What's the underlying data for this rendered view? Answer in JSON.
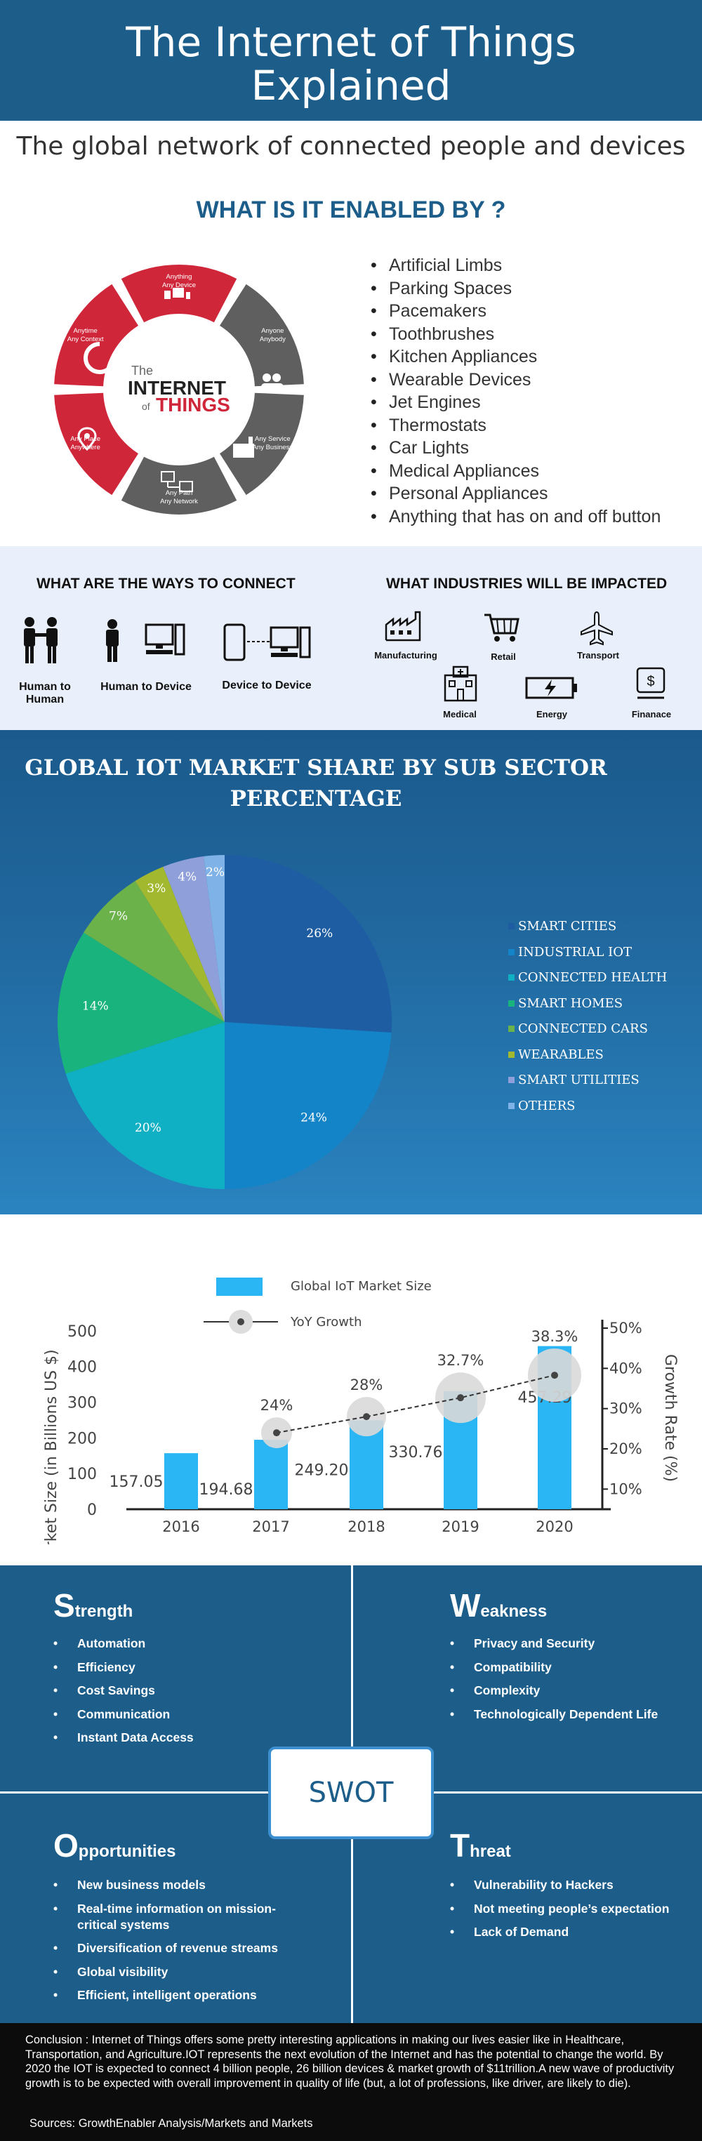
{
  "header": {
    "title_line1": "The Internet of Things",
    "title_line2": "Explained"
  },
  "subtitle": "The global network of connected people and devices",
  "enabled": {
    "title": "WHAT IS IT ENABLED BY ?",
    "wheel": {
      "center_line1": "The",
      "center_line2": "INTERNET",
      "center_line3": "of",
      "center_line4": "THINGS",
      "segments": [
        {
          "line1": "Anything",
          "line2": "Any Device",
          "color": "#d0263a"
        },
        {
          "line1": "Anyone",
          "line2": "Anybody",
          "color": "#5f5f5f"
        },
        {
          "line1": "Any Service",
          "line2": "Any Business",
          "color": "#5f5f5f"
        },
        {
          "line1": "Any Path",
          "line2": "Any Network",
          "color": "#5f5f5f"
        },
        {
          "line1": "Any Place",
          "line2": "Anywhere",
          "color": "#d0263a"
        },
        {
          "line1": "Anytime",
          "line2": "Any Context",
          "color": "#d0263a"
        }
      ]
    },
    "items": [
      "Artificial Limbs",
      "Parking Spaces",
      "Pacemakers",
      "Toothbrushes",
      "Kitchen Appliances",
      "Wearable Devices",
      "Jet Engines",
      "Thermostats",
      "Car Lights",
      "Medical Appliances",
      "Personal Appliances",
      "Anything that has on and off button"
    ]
  },
  "connect": {
    "title": "WHAT ARE THE WAYS TO CONNECT",
    "ways": [
      {
        "label_line1": "Human to",
        "label_line2": "Human",
        "icon": "handshake-icon"
      },
      {
        "label_line1": "Human to Device",
        "label_line2": "",
        "icon": "person-computer-icon"
      },
      {
        "label_line1": "Device to  Device",
        "label_line2": "",
        "icon": "phone-computer-icon"
      }
    ]
  },
  "industries": {
    "title": "WHAT INDUSTRIES WILL BE IMPACTED",
    "items": [
      {
        "label": "Manufacturing",
        "icon": "factory-icon"
      },
      {
        "label": "Retail",
        "icon": "cart-icon"
      },
      {
        "label": "Transport",
        "icon": "airplane-icon"
      },
      {
        "label": "Medical",
        "icon": "hospital-icon"
      },
      {
        "label": "Energy",
        "icon": "battery-icon"
      },
      {
        "label": "Finanace",
        "icon": "money-icon"
      }
    ]
  },
  "market_share": {
    "title_line1": "GLOBAL IOT MARKET SHARE BY SUB SECTOR",
    "title_line2": "PERCENTAGE"
  },
  "growth": {
    "legend_bar": "Global IoT Market Size",
    "legend_line": "YoY Growth",
    "y_left_label": "Market Size (in Billions US $)",
    "y_right_label": "Growth Rate (%)"
  },
  "chart_data": [
    {
      "type": "pie",
      "title": "GLOBAL IOT MARKET SHARE BY SUB SECTOR PERCENTAGE",
      "slices": [
        {
          "label": "SMART CITIES",
          "value": 26,
          "label_text": "26%",
          "color": "#1f5da3"
        },
        {
          "label": "INDUSTRIAL IOT",
          "value": 24,
          "label_text": "24%",
          "color": "#1384c8"
        },
        {
          "label": "CONNECTED HEALTH",
          "value": 20,
          "label_text": "20%",
          "color": "#10b0c4"
        },
        {
          "label": "SMART HOMES",
          "value": 14,
          "label_text": "14%",
          "color": "#19b37e"
        },
        {
          "label": "CONNECTED CARS",
          "value": 7,
          "label_text": "7%",
          "color": "#6bb24a"
        },
        {
          "label": "WEARABLES",
          "value": 3,
          "label_text": "3%",
          "color": "#a2b82f"
        },
        {
          "label": "SMART UTILITIES",
          "value": 4,
          "label_text": "4%",
          "color": "#8f9fd9"
        },
        {
          "label": "OTHERS",
          "value": 2,
          "label_text": "2%",
          "color": "#7fb2e6"
        }
      ],
      "legend_position": "right"
    },
    {
      "type": "bar",
      "categories": [
        "2016",
        "2017",
        "2018",
        "2019",
        "2020"
      ],
      "series": [
        {
          "name": "Global IoT Market Size",
          "values": [
            157.05,
            194.68,
            249.2,
            330.76,
            457.29
          ],
          "labels": [
            "157.05",
            "194.68",
            "249.20",
            "330.76",
            "457.29"
          ],
          "color": "#2ab5f5",
          "axis": "left"
        },
        {
          "name": "YoY Growth",
          "x": [
            "2017",
            "2018",
            "2019",
            "2020"
          ],
          "values": [
            24,
            28,
            32.7,
            38.3
          ],
          "labels": [
            "24%",
            "28%",
            "32.7%",
            "38.3%"
          ],
          "type": "line",
          "axis": "right"
        }
      ],
      "ylabel": "Market Size (in Billions US $)",
      "y2label": "Growth Rate (%)",
      "ylim": [
        0,
        500
      ],
      "yticks": [
        "0",
        "100",
        "200",
        "300",
        "400",
        "500"
      ],
      "y2lim": [
        5,
        50
      ],
      "y2ticks": [
        "10%",
        "20%",
        "30%",
        "40%",
        "50%"
      ],
      "legend_position": "top"
    }
  ],
  "swot": {
    "center_label": "SWOT",
    "strength": {
      "initial": "S",
      "rest": "trength",
      "items": [
        "Automation",
        "Efficiency",
        "Cost Savings",
        "Communication",
        "Instant Data Access"
      ]
    },
    "weakness": {
      "initial": "W",
      "rest": "eakness",
      "items": [
        "Privacy and Security",
        "Compatibility",
        "Complexity",
        "Technologically Dependent Life"
      ]
    },
    "opportunities": {
      "initial": "O",
      "rest": "pportunities",
      "items": [
        "New business models",
        "Real-time information on mission-critical systems",
        "Diversification of revenue streams",
        "Global visibility",
        "Efficient, intelligent operations"
      ]
    },
    "threat": {
      "initial": "T",
      "rest": "hreat",
      "items": [
        "Vulnerability to Hackers",
        "Not meeting people’s expectation",
        "Lack of Demand"
      ]
    }
  },
  "conclusion": {
    "text": "Conclusion : Internet of Things offers some pretty interesting applications in making our lives easier like in Healthcare, Transportation, and Agriculture.IOT represents the next evolution of the Internet and has the potential to change the world. By 2020 the IOT is expected to connect 4 billion people, 26 billion devices & market growth of $11trillion.A new wave of productivity growth is to be expected with overall improvement in quality of life (but, a lot of professions, like driver, are likely to die).",
    "sources": "Sources: GrowthEnabler Analysis/Markets and Markets"
  },
  "colors": {
    "primary_blue": "#1c5d8a",
    "accent_red": "#d0263a",
    "wheel_gray": "#5f5f5f",
    "band_bg": "#eaf0fb",
    "bar_blue": "#2ab5f5"
  }
}
